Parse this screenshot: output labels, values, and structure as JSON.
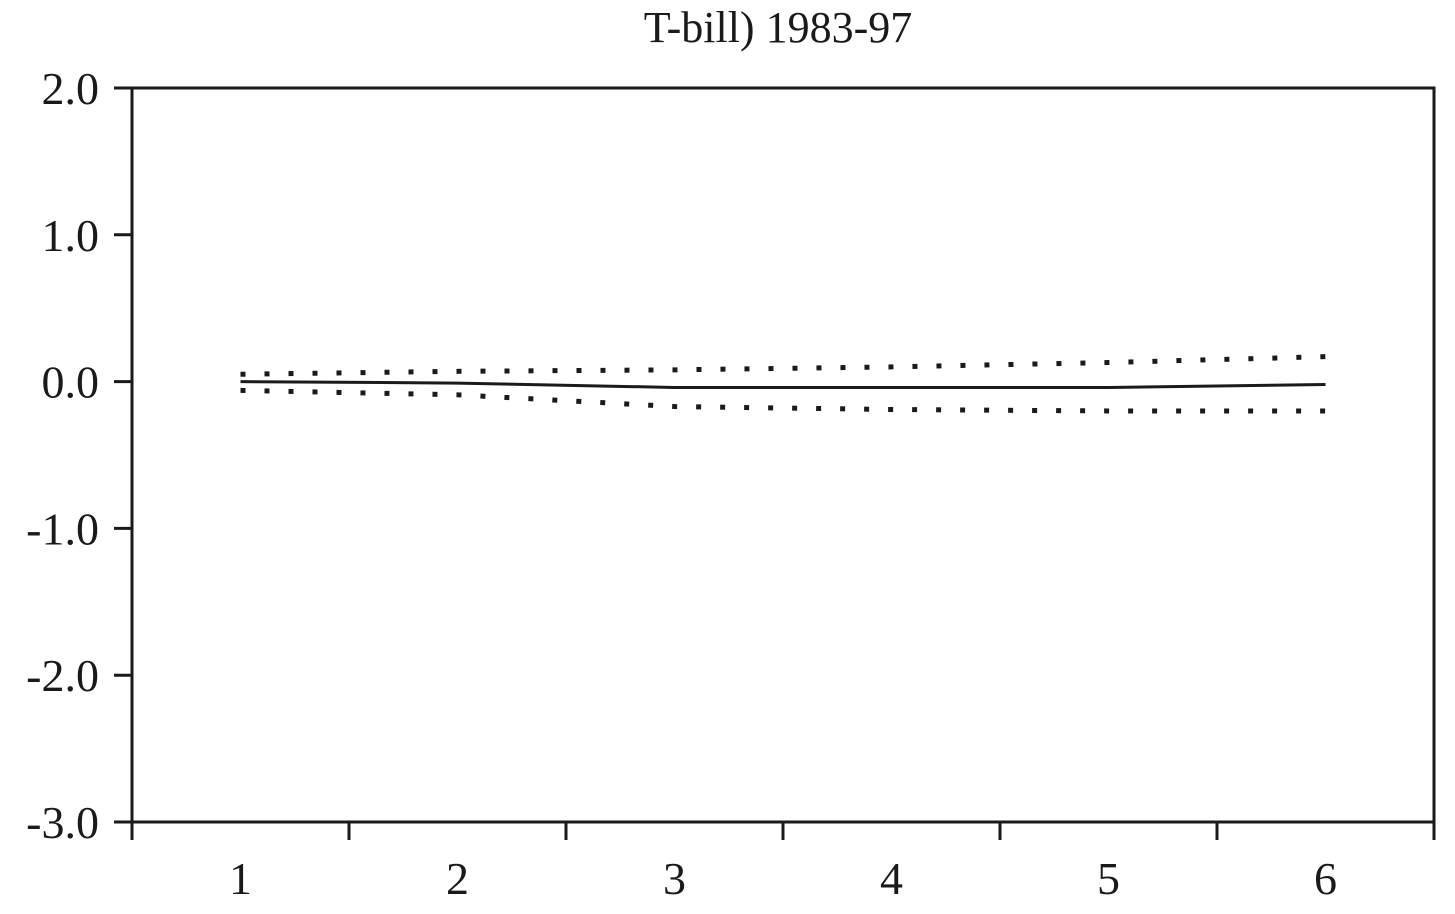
{
  "chart_data": {
    "type": "line",
    "title": "T-bill) 1983-97",
    "xlabel": "",
    "ylabel": "",
    "x": [
      1,
      2,
      3,
      4,
      5,
      6
    ],
    "x_tick_labels": [
      "1",
      "2",
      "3",
      "4",
      "5",
      "6"
    ],
    "y_tick_values": [
      2.0,
      1.0,
      0.0,
      -1.0,
      -2.0,
      -3.0
    ],
    "y_tick_labels": [
      "2.0",
      "1.0",
      "0.0",
      "-1.0",
      "-2.0",
      "-3.0"
    ],
    "xlim": [
      0.5,
      6.5
    ],
    "ylim": [
      -3.0,
      2.0
    ],
    "grid": false,
    "legend": "none",
    "series": [
      {
        "style": "solid",
        "values": [
          0.0,
          -0.01,
          -0.04,
          -0.04,
          -0.04,
          -0.02
        ]
      },
      {
        "style": "dotted",
        "values": [
          0.05,
          0.07,
          0.08,
          0.1,
          0.13,
          0.17
        ]
      },
      {
        "style": "dotted",
        "values": [
          -0.06,
          -0.09,
          -0.17,
          -0.19,
          -0.2,
          -0.2
        ]
      }
    ]
  }
}
